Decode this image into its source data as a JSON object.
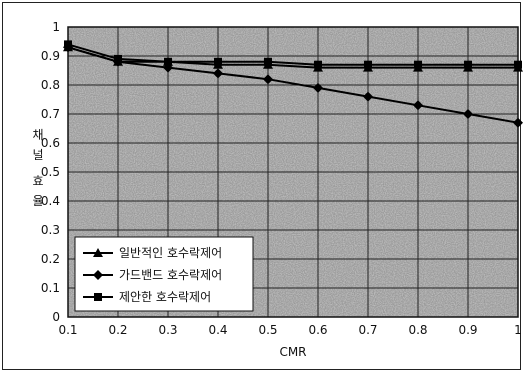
{
  "chart_data": {
    "type": "line",
    "xlabel": "CMR",
    "ylabel": "채널 효율",
    "xlim": [
      0.1,
      1.0
    ],
    "ylim": [
      0,
      1.0
    ],
    "x": [
      0.1,
      0.2,
      0.3,
      0.4,
      0.5,
      0.6,
      0.7,
      0.8,
      0.9,
      1.0
    ],
    "xticks": [
      "0.1",
      "0.2",
      "0.3",
      "0.4",
      "0.5",
      "0.6",
      "0.7",
      "0.8",
      "0.9",
      "1"
    ],
    "yticks": [
      "0",
      "0.1",
      "0.2",
      "0.3",
      "0.4",
      "0.5",
      "0.6",
      "0.7",
      "0.8",
      "0.9",
      "1"
    ],
    "grid": true,
    "legend_position": "bottom-left",
    "series": [
      {
        "name": "일반적인 호수락제어",
        "marker": "triangle",
        "values": [
          0.93,
          0.88,
          0.88,
          0.87,
          0.87,
          0.86,
          0.86,
          0.86,
          0.86,
          0.86
        ]
      },
      {
        "name": "가드밴드 호수락제어",
        "marker": "diamond",
        "values": [
          0.93,
          0.88,
          0.86,
          0.84,
          0.82,
          0.79,
          0.76,
          0.73,
          0.7,
          0.67
        ]
      },
      {
        "name": "제안한 호수락제어",
        "marker": "square",
        "values": [
          0.94,
          0.89,
          0.88,
          0.88,
          0.88,
          0.87,
          0.87,
          0.87,
          0.87,
          0.87
        ]
      }
    ]
  }
}
